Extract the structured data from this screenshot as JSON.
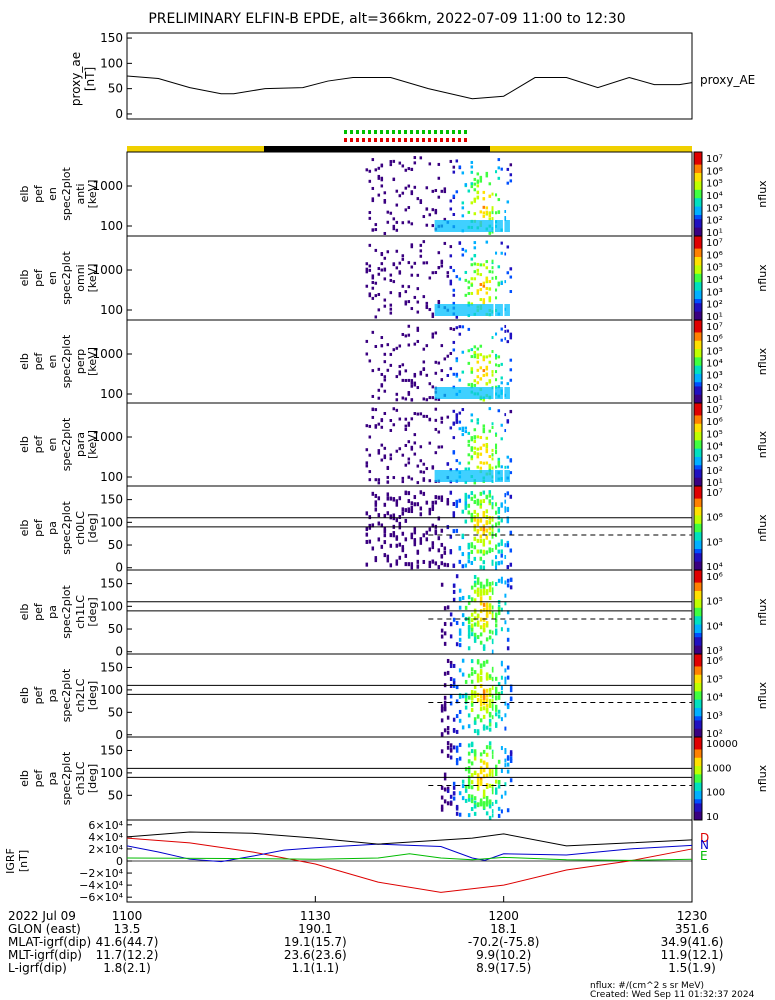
{
  "title": "PRELIMINARY ELFIN-B EPDE, alt=366km, 2022-07-09 11:00 to 12:30",
  "chart_data": [
    {
      "type": "line",
      "panel": "proxy_ae",
      "ylabel": [
        "proxy_ae",
        "[nT]"
      ],
      "series_label": "proxy_AE",
      "yticks": [
        "150",
        "100",
        "50",
        "0"
      ],
      "ylim": [
        0,
        150
      ],
      "x": [
        0,
        5,
        10,
        15,
        17,
        22,
        28,
        32,
        36,
        42,
        48,
        55,
        60,
        65,
        70,
        75,
        80,
        84,
        88,
        90
      ],
      "values": [
        75,
        70,
        52,
        40,
        40,
        50,
        52,
        65,
        72,
        72,
        50,
        30,
        35,
        72,
        72,
        52,
        72,
        58,
        58,
        62
      ]
    },
    {
      "type": "heatmap",
      "panel": "elb pef en spec2plot anti",
      "ylabel": [
        "elb",
        "pef",
        "en",
        "spec2plot",
        "anti",
        "[keV]"
      ],
      "yticks": [
        "1000",
        "100"
      ],
      "colorbar": {
        "label": "nflux",
        "ticks": [
          "10⁷",
          "10⁶",
          "10⁵",
          "10⁴",
          "10³",
          "10²",
          "10¹"
        ]
      }
    },
    {
      "type": "heatmap",
      "panel": "elb pef en spec2plot omni",
      "ylabel": [
        "elb",
        "pef",
        "en",
        "spec2plot",
        "omni",
        "[keV]"
      ],
      "yticks": [
        "1000",
        "100"
      ],
      "colorbar": {
        "label": "nflux",
        "ticks": [
          "10⁷",
          "10⁶",
          "10⁵",
          "10⁴",
          "10³",
          "10²",
          "10¹"
        ]
      }
    },
    {
      "type": "heatmap",
      "panel": "elb pef en spec2plot perp",
      "ylabel": [
        "elb",
        "pef",
        "en",
        "spec2plot",
        "perp",
        "[keV]"
      ],
      "yticks": [
        "1000",
        "100"
      ],
      "colorbar": {
        "label": "nflux",
        "ticks": [
          "10⁷",
          "10⁶",
          "10⁵",
          "10⁴",
          "10³",
          "10²",
          "10¹"
        ]
      }
    },
    {
      "type": "heatmap",
      "panel": "elb pef en spec2plot para",
      "ylabel": [
        "elb",
        "pef",
        "en",
        "spec2plot",
        "para",
        "[keV]"
      ],
      "yticks": [
        "1000",
        "100"
      ],
      "colorbar": {
        "label": "nflux",
        "ticks": [
          "10⁷",
          "10⁶",
          "10⁵",
          "10⁴",
          "10³",
          "10²",
          "10¹"
        ]
      }
    },
    {
      "type": "heatmap",
      "panel": "elb pef pa spec2plot ch0LC",
      "ylabel": [
        "elb",
        "pef",
        "pa",
        "spec2plot",
        "ch0LC",
        "[deg]"
      ],
      "yticks": [
        "150",
        "100",
        "50",
        "0"
      ],
      "colorbar": {
        "label": "nflux",
        "ticks": [
          "10⁷",
          "10⁶",
          "10⁵",
          "10⁴"
        ]
      }
    },
    {
      "type": "heatmap",
      "panel": "elb pef pa spec2plot ch1LC",
      "ylabel": [
        "elb",
        "pef",
        "pa",
        "spec2plot",
        "ch1LC",
        "[deg]"
      ],
      "yticks": [
        "150",
        "100",
        "50",
        "0"
      ],
      "colorbar": {
        "label": "nflux",
        "ticks": [
          "10⁶",
          "10⁵",
          "10⁴",
          "10³"
        ]
      }
    },
    {
      "type": "heatmap",
      "panel": "elb pef pa spec2plot ch2LC",
      "ylabel": [
        "elb",
        "pef",
        "pa",
        "spec2plot",
        "ch2LC",
        "[deg]"
      ],
      "yticks": [
        "150",
        "100",
        "50",
        "0"
      ],
      "colorbar": {
        "label": "nflux",
        "ticks": [
          "10⁶",
          "10⁵",
          "10⁴",
          "10³",
          "10²"
        ]
      }
    },
    {
      "type": "heatmap",
      "panel": "elb pef pa spec2plot ch3LC",
      "ylabel": [
        "elb",
        "pef",
        "pa",
        "spec2plot",
        "ch3LC",
        "[deg]"
      ],
      "yticks": [
        "150",
        "100",
        "50"
      ],
      "colorbar": {
        "label": "nflux",
        "ticks": [
          "10000",
          "1000",
          "100",
          "10"
        ]
      }
    },
    {
      "type": "line",
      "panel": "IGRF",
      "ylabel": [
        "IGRF",
        "[nT]"
      ],
      "yticks": [
        "6×10⁴",
        "4×10⁴",
        "2×10⁴",
        "0",
        "−2×10⁴",
        "−4×10⁴",
        "−6×10⁴"
      ],
      "ylim": [
        -60000,
        60000
      ],
      "series": [
        {
          "name": "D",
          "color": "#dd0000",
          "x": [
            0,
            10,
            20,
            30,
            40,
            50,
            60,
            70,
            80,
            90
          ],
          "values": [
            38000,
            30000,
            15000,
            -5000,
            -35000,
            -52000,
            -40000,
            -15000,
            0,
            20000
          ]
        },
        {
          "name": "N",
          "color": "#0000cc",
          "x": [
            0,
            5,
            10,
            15,
            20,
            25,
            30,
            40,
            50,
            55,
            57,
            60,
            70,
            80,
            90
          ],
          "values": [
            25000,
            15000,
            3000,
            -1000,
            8000,
            18000,
            22000,
            28000,
            24000,
            5000,
            1000,
            12000,
            10000,
            20000,
            26000
          ]
        },
        {
          "name": "E",
          "color": "#00bb00",
          "x": [
            0,
            20,
            30,
            40,
            45,
            50,
            55,
            60,
            70,
            80,
            90
          ],
          "values": [
            5000,
            4000,
            3000,
            5000,
            12000,
            5000,
            2000,
            6000,
            2000,
            1000,
            3000
          ]
        },
        {
          "name": "",
          "color": "#000000",
          "x": [
            0,
            10,
            20,
            30,
            40,
            55,
            60,
            70,
            80,
            90
          ],
          "values": [
            40000,
            48000,
            46000,
            38000,
            28000,
            38000,
            45000,
            25000,
            30000,
            35000
          ]
        }
      ],
      "legend": [
        "D",
        "N",
        "E"
      ]
    }
  ],
  "x_axis": {
    "rows": [
      {
        "label": "2022 Jul 09",
        "values": [
          "1100",
          "1130",
          "1200",
          "1230"
        ]
      },
      {
        "label": "GLON (east)",
        "values": [
          "13.5",
          "190.1",
          "18.1",
          "351.6"
        ]
      },
      {
        "label": "MLAT-igrf(dip)",
        "values": [
          "41.6(44.7)",
          "19.1(15.7)",
          "-70.2(-75.8)",
          "34.9(41.6)"
        ]
      },
      {
        "label": "MLT-igrf(dip)",
        "values": [
          "11.7(12.2)",
          "23.6(23.6)",
          "9.9(10.2)",
          "11.9(12.1)"
        ]
      },
      {
        "label": "L-igrf(dip)",
        "values": [
          "1.8(2.1)",
          "1.1(1.1)",
          "8.9(17.5)",
          "1.5(1.9)"
        ]
      }
    ]
  },
  "footer": {
    "units": "nflux: #/(cm^2 s sr MeV)",
    "created": "Created: Wed Sep 11 01:32:37 2024"
  }
}
